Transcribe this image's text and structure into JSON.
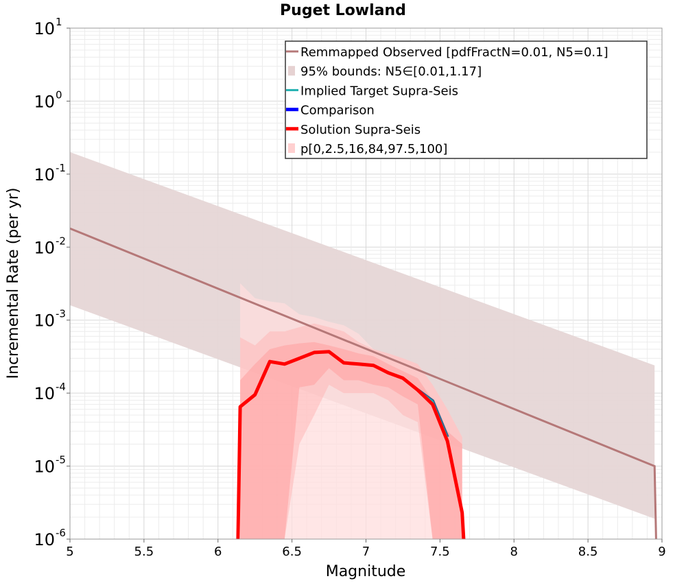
{
  "chart_data": {
    "type": "line",
    "title": "Puget Lowland",
    "xlabel": "Magnitude",
    "ylabel": "Incremental Rate (per yr)",
    "xlim": [
      5,
      9
    ],
    "ylim_log10": [
      -6,
      1
    ],
    "y_scale": "log",
    "grid": true,
    "legend_position": "top-right",
    "x_ticks": [
      "5",
      "5.5",
      "6",
      "6.5",
      "7",
      "7.5",
      "8",
      "8.5",
      "9"
    ],
    "y_ticks": [
      {
        "base": "10",
        "exp": "-6"
      },
      {
        "base": "10",
        "exp": "-5"
      },
      {
        "base": "10",
        "exp": "-4"
      },
      {
        "base": "10",
        "exp": "-3"
      },
      {
        "base": "10",
        "exp": "-2"
      },
      {
        "base": "10",
        "exp": "-1"
      },
      {
        "base": "10",
        "exp": "0"
      },
      {
        "base": "10",
        "exp": "1"
      }
    ],
    "legend": [
      {
        "label": "Remmapped Observed [pdfFractN=0.01, N5=0.1]",
        "color": "#b57878",
        "style": "line"
      },
      {
        "label": "95% bounds: N5∈[0.01,1.17]",
        "color": "#e6d2d2",
        "style": "fill"
      },
      {
        "label": "Implied Target Supra-Seis",
        "color": "#20b0b0",
        "style": "line"
      },
      {
        "label": "Comparison",
        "color": "#0000ff",
        "style": "thick"
      },
      {
        "label": "Solution Supra-Seis",
        "color": "#ff0000",
        "style": "thick"
      },
      {
        "label": "p[0,2.5,16,84,97.5,100]",
        "color": "#ffd0d0",
        "style": "fill"
      }
    ],
    "colors": {
      "observed_line": "#b57878",
      "bounds_fill": "#e6d6d6",
      "p_outer": "#ffdede",
      "p_mid": "#ffb8b8",
      "p_inner": "#ffa0a0",
      "solution": "#ff0000",
      "implied": "#20b0b0",
      "comparison": "#0000ff"
    },
    "series": [
      {
        "name": "Remmapped Observed [pdfFractN=0.01, N5=0.1]",
        "x": [
          5.0,
          8.95,
          8.96
        ],
        "y": [
          0.018,
          1e-05,
          1e-06
        ]
      },
      {
        "name": "95% bounds: N5∈[0.01,1.17]",
        "x": [
          5.0,
          8.95
        ],
        "upper": [
          0.2,
          0.00024
        ],
        "lower": [
          0.0016,
          1.9e-06
        ]
      },
      {
        "name": "p[0,2.5,16,84,97.5,100] outer (0-100)",
        "x": [
          6.15,
          6.25,
          6.35,
          6.45,
          6.55,
          6.65,
          6.75,
          6.85,
          6.95,
          7.05,
          7.15,
          7.25,
          7.35,
          7.45,
          7.55,
          7.65
        ],
        "upper": [
          0.0032,
          0.002,
          0.0018,
          0.0017,
          0.0012,
          0.0011,
          0.00095,
          0.00085,
          0.00065,
          0.0004,
          0.00035,
          0.0003,
          0.00025,
          0.00013,
          6e-05,
          2.5e-05
        ],
        "lower": [
          1e-06,
          1e-06,
          1e-06,
          1e-06,
          1e-06,
          1e-06,
          1e-06,
          1e-06,
          1e-06,
          1e-06,
          1e-06,
          1e-06,
          1e-06,
          1e-06,
          1e-06,
          1e-06
        ]
      },
      {
        "name": "p[0,2.5,16,84,97.5,100] mid (2.5-97.5)",
        "x": [
          6.15,
          6.25,
          6.35,
          6.45,
          6.55,
          6.65,
          6.75,
          6.85,
          6.95,
          7.05,
          7.15,
          7.25,
          7.35,
          7.45,
          7.55,
          7.65
        ],
        "upper": [
          0.00058,
          0.00045,
          0.0007,
          0.0007,
          0.0008,
          0.0009,
          0.0008,
          0.0007,
          0.0005,
          0.0004,
          0.00035,
          0.0003,
          0.00025,
          0.00013,
          6e-05,
          2.5e-05
        ],
        "lower": [
          1e-06,
          1e-06,
          1e-06,
          1e-06,
          2e-05,
          5e-05,
          0.00013,
          0.0001,
          0.0001,
          0.0001,
          8e-05,
          5e-05,
          4e-05,
          1e-06,
          1e-06,
          1e-06
        ]
      },
      {
        "name": "p[0,2.5,16,84,97.5,100] inner (16-84)",
        "x": [
          6.15,
          6.25,
          6.35,
          6.45,
          6.55,
          6.65,
          6.75,
          6.85,
          6.95,
          7.05,
          7.15,
          7.25,
          7.35,
          7.45,
          7.55,
          7.65
        ],
        "upper": [
          0.00015,
          0.00025,
          0.0004,
          0.00045,
          0.00048,
          0.0005,
          0.00045,
          0.0004,
          0.00035,
          0.00032,
          0.00025,
          0.0002,
          0.00016,
          8e-05,
          3e-05,
          2e-05
        ],
        "lower": [
          1e-06,
          1e-06,
          1e-06,
          1e-06,
          0.00012,
          0.00013,
          0.00022,
          0.00015,
          0.00015,
          0.00013,
          0.00012,
          9e-05,
          7e-05,
          1e-06,
          1e-06,
          1e-06
        ]
      },
      {
        "name": "Comparison",
        "x": [
          7.35,
          7.45,
          7.55
        ],
        "y": [
          0.00011,
          7.8e-05,
          2.5e-05
        ]
      },
      {
        "name": "Implied Target Supra-Seis",
        "x": [
          7.35,
          7.45,
          7.55
        ],
        "y": [
          0.00011,
          7.8e-05,
          2.5e-05
        ]
      },
      {
        "name": "Solution Supra-Seis",
        "x": [
          6.135,
          6.15,
          6.25,
          6.35,
          6.45,
          6.55,
          6.65,
          6.75,
          6.85,
          6.95,
          7.05,
          7.15,
          7.25,
          7.35,
          7.45,
          7.55,
          7.65,
          7.66
        ],
        "y": [
          1e-06,
          6.5e-05,
          9.5e-05,
          0.00027,
          0.00025,
          0.0003,
          0.00036,
          0.00037,
          0.00026,
          0.00025,
          0.00024,
          0.00019,
          0.00016,
          0.00011,
          7e-05,
          2.2e-05,
          2.3e-06,
          1e-06
        ]
      }
    ]
  }
}
